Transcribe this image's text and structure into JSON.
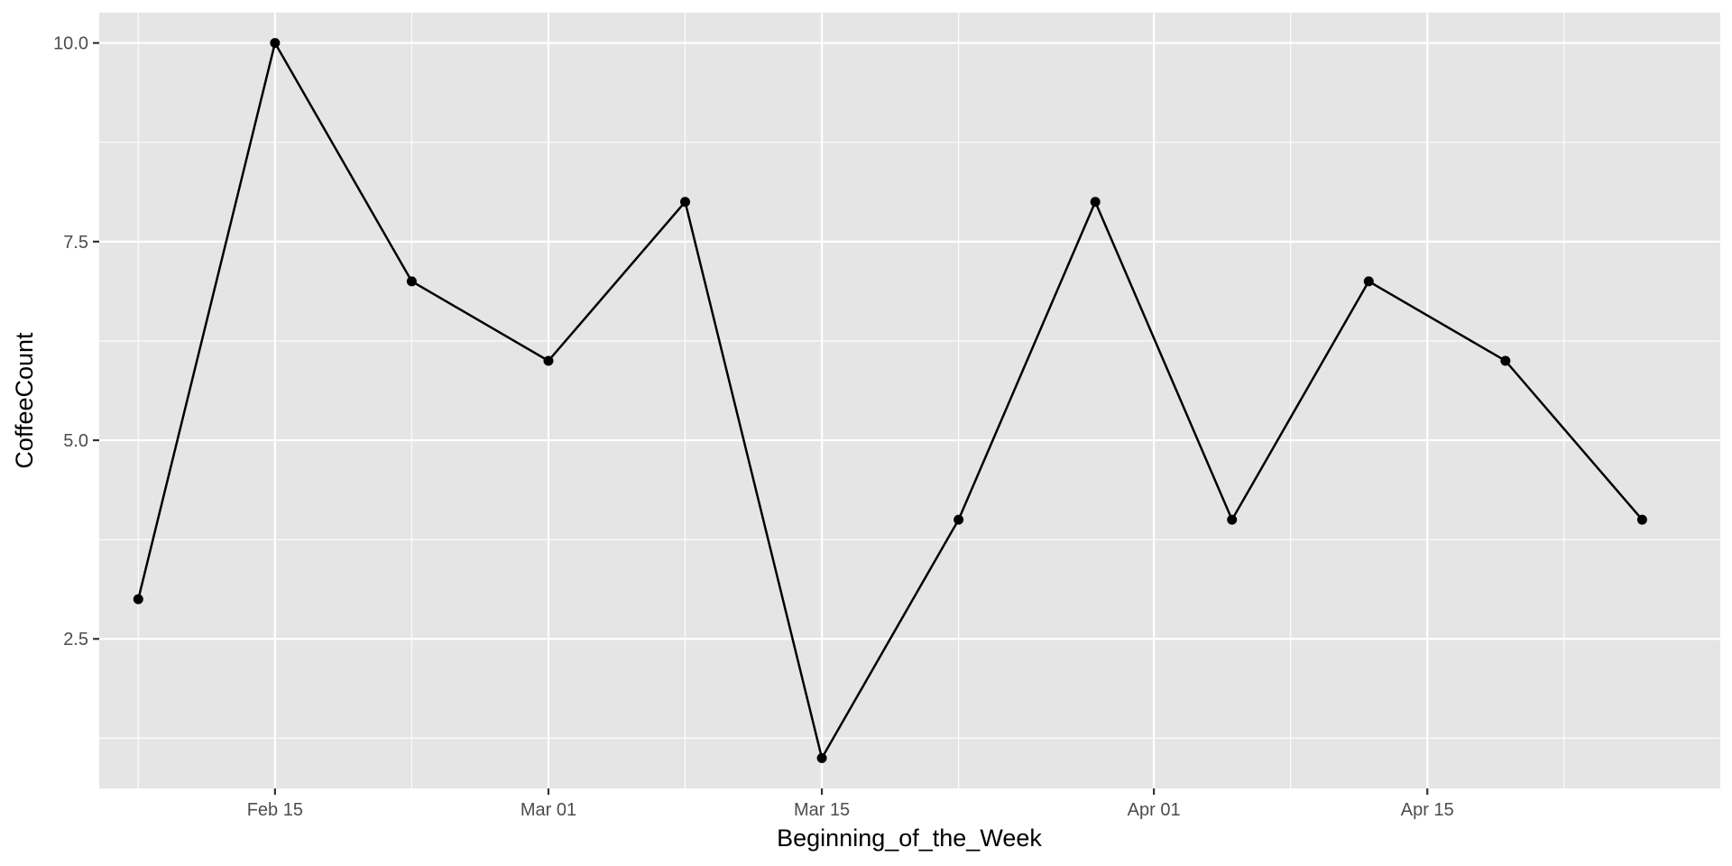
{
  "chart_data": {
    "type": "line",
    "xlabel": "Beginning_of_the_Week",
    "ylabel": "CoffeeCount",
    "x_type": "date",
    "x_range": [
      "2021-02-06",
      "2021-04-30"
    ],
    "ylim": [
      0.618,
      10.382
    ],
    "x_ticks": [
      {
        "date": "2021-02-15",
        "label": "Feb 15"
      },
      {
        "date": "2021-03-01",
        "label": "Mar 01"
      },
      {
        "date": "2021-03-15",
        "label": "Mar 15"
      },
      {
        "date": "2021-04-01",
        "label": "Apr 01"
      },
      {
        "date": "2021-04-15",
        "label": "Apr 15"
      }
    ],
    "x_minor_ticks": [
      "2021-02-08",
      "2021-02-22",
      "2021-03-08",
      "2021-03-22",
      "2021-04-08",
      "2021-04-22"
    ],
    "y_ticks": [
      {
        "value": 2.5,
        "label": "2.5"
      },
      {
        "value": 5.0,
        "label": "5.0"
      },
      {
        "value": 7.5,
        "label": "7.5"
      },
      {
        "value": 10.0,
        "label": "10.0"
      }
    ],
    "y_minor_ticks": [
      1.25,
      3.75,
      6.25,
      8.75
    ],
    "grid": true,
    "legend": false,
    "series": [
      {
        "x": [
          "2021-02-08",
          "2021-02-15",
          "2021-02-22",
          "2021-03-01",
          "2021-03-08",
          "2021-03-15",
          "2021-03-22",
          "2021-03-29",
          "2021-04-05",
          "2021-04-12",
          "2021-04-19",
          "2021-04-26"
        ],
        "values": [
          3,
          10,
          7,
          6,
          8,
          1,
          4,
          8,
          4,
          7,
          6,
          4
        ]
      }
    ],
    "colors": {
      "panel": "#e5e5e5",
      "grid": "#ffffff",
      "line": "#000000",
      "tick_label": "#4d4d4d"
    }
  }
}
